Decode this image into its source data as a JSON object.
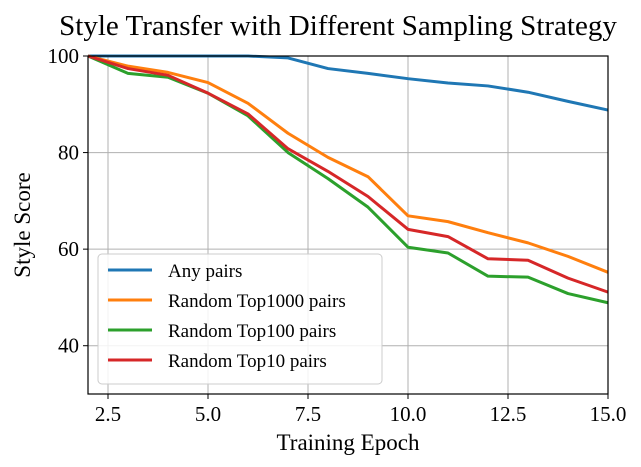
{
  "chart_data": {
    "type": "line",
    "title": "Style Transfer with Different Sampling Strategy",
    "xlabel": "Training Epoch",
    "ylabel": "Style Score",
    "xlim": [
      2,
      15
    ],
    "ylim": [
      30,
      100
    ],
    "xticks": [
      2.5,
      5.0,
      7.5,
      10.0,
      12.5,
      15.0
    ],
    "xtick_labels": [
      "2.5",
      "5.0",
      "7.5",
      "10.0",
      "12.5",
      "15.0"
    ],
    "yticks": [
      40,
      60,
      80,
      100
    ],
    "ytick_labels": [
      "40",
      "60",
      "80",
      "100"
    ],
    "grid": true,
    "legend_position": "lower-left",
    "x": [
      2,
      3,
      4,
      5,
      6,
      7,
      8,
      9,
      10,
      11,
      12,
      13,
      14,
      15
    ],
    "series": [
      {
        "name": "Any pairs",
        "color": "#1f77b4",
        "values": [
          100,
          100,
          100,
          100,
          100,
          99.6,
          97.4,
          96.4,
          95.3,
          94.4,
          93.8,
          92.5,
          90.6,
          88.8
        ]
      },
      {
        "name": "Random Top1000 pairs",
        "color": "#ff7f0e",
        "values": [
          100,
          97.9,
          96.6,
          94.5,
          90.2,
          84.0,
          79.0,
          75.0,
          66.9,
          65.7,
          63.4,
          61.3,
          58.5,
          55.2
        ]
      },
      {
        "name": "Random Top100 pairs",
        "color": "#2ca02c",
        "values": [
          100,
          96.4,
          95.6,
          92.3,
          87.6,
          80.0,
          74.6,
          68.7,
          60.4,
          59.2,
          54.4,
          54.2,
          50.8,
          48.9
        ]
      },
      {
        "name": "Random Top10 pairs",
        "color": "#d62728",
        "values": [
          100,
          97.4,
          96.0,
          92.3,
          88.0,
          80.8,
          76.1,
          70.9,
          64.1,
          62.6,
          58.0,
          57.7,
          54.0,
          51.1
        ]
      }
    ]
  }
}
